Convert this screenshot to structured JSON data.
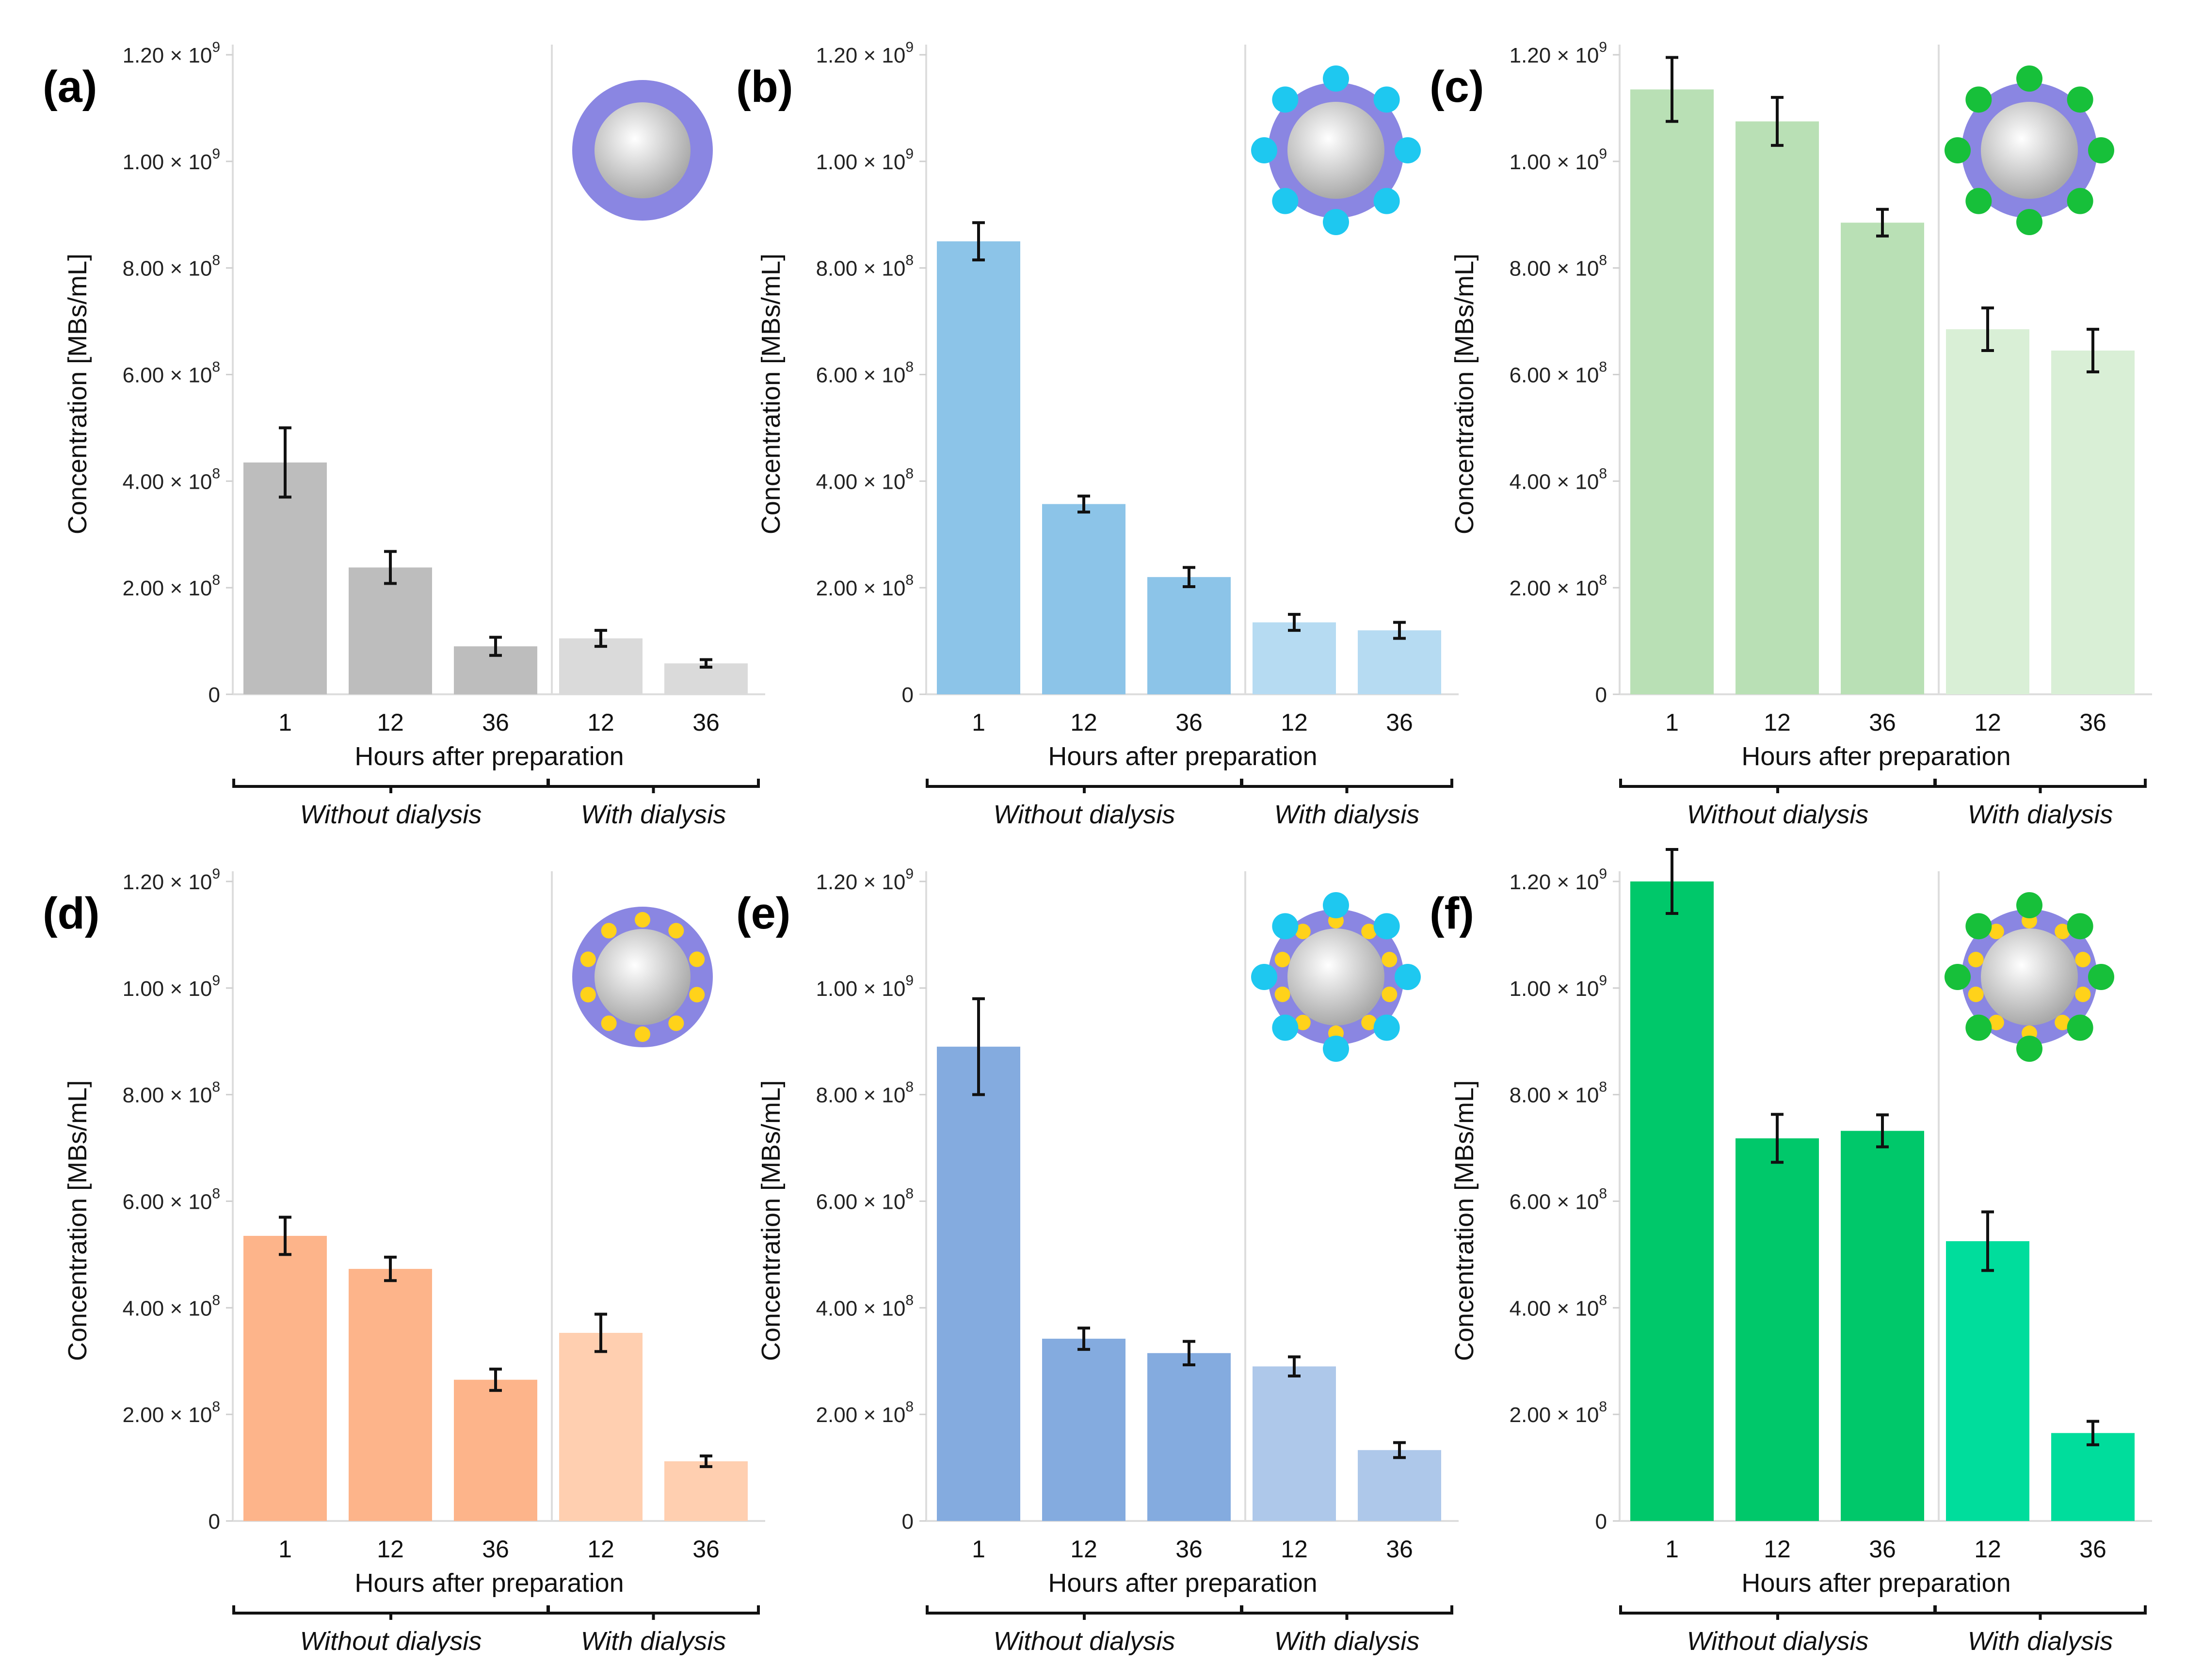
{
  "chart_data": [
    {
      "type": "bar",
      "panel_label": "(a)",
      "ylabel": "Concentration [MBs/mL]",
      "xlabel": "Hours after preparation",
      "categories": [
        "1",
        "12",
        "36",
        "12",
        "36"
      ],
      "groups": [
        {
          "label": "Without dialysis",
          "indices": [
            0,
            1,
            2
          ]
        },
        {
          "label": "With dialysis",
          "indices": [
            3,
            4
          ]
        }
      ],
      "values": [
        435000000.0,
        238000000.0,
        90000000.0,
        105000000.0,
        58000000.0
      ],
      "errors": [
        65000000.0,
        30000000.0,
        17000000.0,
        15000000.0,
        7000000.0
      ],
      "ylim": [
        0,
        1200000000.0
      ],
      "yticks": [
        {
          "value": 0,
          "label": "0",
          "sup": ""
        },
        {
          "value": 200000000.0,
          "label": "2.00 × 10",
          "sup": "8"
        },
        {
          "value": 400000000.0,
          "label": "4.00 × 10",
          "sup": "8"
        },
        {
          "value": 600000000.0,
          "label": "6.00 × 10",
          "sup": "8"
        },
        {
          "value": 800000000.0,
          "label": "8.00 × 10",
          "sup": "8"
        },
        {
          "value": 1000000000.0,
          "label": "1.00 × 10",
          "sup": "9"
        },
        {
          "value": 1200000000.0,
          "label": "1.20 × 10",
          "sup": "9"
        }
      ],
      "colors": [
        "#bdbdbd",
        "#bdbdbd",
        "#bdbdbd",
        "#dadada",
        "#dadada"
      ],
      "icon": {
        "name": "plain-microbubble-icon",
        "outer_dots": "",
        "inner_dots": ""
      }
    },
    {
      "type": "bar",
      "panel_label": "(b)",
      "ylabel": "Concentration [MBs/mL]",
      "xlabel": "Hours after preparation",
      "categories": [
        "1",
        "12",
        "36",
        "12",
        "36"
      ],
      "groups": [
        {
          "label": "Without dialysis",
          "indices": [
            0,
            1,
            2
          ]
        },
        {
          "label": "With dialysis",
          "indices": [
            3,
            4
          ]
        }
      ],
      "values": [
        850000000.0,
        357000000.0,
        220000000.0,
        135000000.0,
        120000000.0
      ],
      "errors": [
        35000000.0,
        15000000.0,
        18000000.0,
        15000000.0,
        15000000.0
      ],
      "ylim": [
        0,
        1200000000.0
      ],
      "yticks": [
        {
          "value": 0,
          "label": "0",
          "sup": ""
        },
        {
          "value": 200000000.0,
          "label": "2.00 × 10",
          "sup": "8"
        },
        {
          "value": 400000000.0,
          "label": "4.00 × 10",
          "sup": "8"
        },
        {
          "value": 600000000.0,
          "label": "6.00 × 10",
          "sup": "8"
        },
        {
          "value": 800000000.0,
          "label": "8.00 × 10",
          "sup": "8"
        },
        {
          "value": 1000000000.0,
          "label": "1.00 × 10",
          "sup": "9"
        },
        {
          "value": 1200000000.0,
          "label": "1.20 × 10",
          "sup": "9"
        }
      ],
      "colors": [
        "#8cc4e8",
        "#8cc4e8",
        "#8cc4e8",
        "#b6dbf2",
        "#b6dbf2"
      ],
      "icon": {
        "name": "cyan-ligand-microbubble-icon",
        "outer_dots": "#1ec8f0",
        "inner_dots": ""
      }
    },
    {
      "type": "bar",
      "panel_label": "(c)",
      "ylabel": "Concentration [MBs/mL]",
      "xlabel": "Hours after preparation",
      "categories": [
        "1",
        "12",
        "36",
        "12",
        "36"
      ],
      "groups": [
        {
          "label": "Without dialysis",
          "indices": [
            0,
            1,
            2
          ]
        },
        {
          "label": "With dialysis",
          "indices": [
            3,
            4
          ]
        }
      ],
      "values": [
        1135000000.0,
        1075000000.0,
        885000000.0,
        685000000.0,
        645000000.0
      ],
      "errors": [
        60000000.0,
        45000000.0,
        25000000.0,
        40000000.0,
        40000000.0
      ],
      "ylim": [
        0,
        1200000000.0
      ],
      "yticks": [
        {
          "value": 0,
          "label": "0",
          "sup": ""
        },
        {
          "value": 200000000.0,
          "label": "2.00 × 10",
          "sup": "8"
        },
        {
          "value": 400000000.0,
          "label": "4.00 × 10",
          "sup": "8"
        },
        {
          "value": 600000000.0,
          "label": "6.00 × 10",
          "sup": "8"
        },
        {
          "value": 800000000.0,
          "label": "8.00 × 10",
          "sup": "8"
        },
        {
          "value": 1000000000.0,
          "label": "1.00 × 10",
          "sup": "9"
        },
        {
          "value": 1200000000.0,
          "label": "1.20 × 10",
          "sup": "9"
        }
      ],
      "colors": [
        "#b9e0b5",
        "#b9e0b5",
        "#b9e0b5",
        "#d9efd6",
        "#d9efd6"
      ],
      "icon": {
        "name": "green-ligand-microbubble-icon",
        "outer_dots": "#17c03a",
        "inner_dots": ""
      }
    },
    {
      "type": "bar",
      "panel_label": "(d)",
      "ylabel": "Concentration [MBs/mL]",
      "xlabel": "Hours after preparation",
      "categories": [
        "1",
        "12",
        "36",
        "12",
        "36"
      ],
      "groups": [
        {
          "label": "Without dialysis",
          "indices": [
            0,
            1,
            2
          ]
        },
        {
          "label": "With dialysis",
          "indices": [
            3,
            4
          ]
        }
      ],
      "values": [
        535000000.0,
        473000000.0,
        265000000.0,
        353000000.0,
        112000000.0
      ],
      "errors": [
        35000000.0,
        22000000.0,
        20000000.0,
        35000000.0,
        10000000.0
      ],
      "ylim": [
        0,
        1200000000.0
      ],
      "yticks": [
        {
          "value": 0,
          "label": "0",
          "sup": ""
        },
        {
          "value": 200000000.0,
          "label": "2.00 × 10",
          "sup": "8"
        },
        {
          "value": 400000000.0,
          "label": "4.00 × 10",
          "sup": "8"
        },
        {
          "value": 600000000.0,
          "label": "6.00 × 10",
          "sup": "8"
        },
        {
          "value": 800000000.0,
          "label": "8.00 × 10",
          "sup": "8"
        },
        {
          "value": 1000000000.0,
          "label": "1.00 × 10",
          "sup": "9"
        },
        {
          "value": 1200000000.0,
          "label": "1.20 × 10",
          "sup": "9"
        }
      ],
      "colors": [
        "#fdb48a",
        "#fdb48a",
        "#fdb48a",
        "#ffcfb0",
        "#ffcfb0"
      ],
      "icon": {
        "name": "yellow-ligand-microbubble-icon",
        "outer_dots": "",
        "inner_dots": "#ffd21a"
      }
    },
    {
      "type": "bar",
      "panel_label": "(e)",
      "ylabel": "Concentration [MBs/mL]",
      "xlabel": "Hours after preparation",
      "categories": [
        "1",
        "12",
        "36",
        "12",
        "36"
      ],
      "groups": [
        {
          "label": "Without dialysis",
          "indices": [
            0,
            1,
            2
          ]
        },
        {
          "label": "With dialysis",
          "indices": [
            3,
            4
          ]
        }
      ],
      "values": [
        890000000.0,
        342000000.0,
        315000000.0,
        290000000.0,
        133000000.0
      ],
      "errors": [
        90000000.0,
        20000000.0,
        22000000.0,
        18000000.0,
        14000000.0
      ],
      "ylim": [
        0,
        1200000000.0
      ],
      "yticks": [
        {
          "value": 0,
          "label": "0",
          "sup": ""
        },
        {
          "value": 200000000.0,
          "label": "2.00 × 10",
          "sup": "8"
        },
        {
          "value": 400000000.0,
          "label": "4.00 × 10",
          "sup": "8"
        },
        {
          "value": 600000000.0,
          "label": "6.00 × 10",
          "sup": "8"
        },
        {
          "value": 800000000.0,
          "label": "8.00 × 10",
          "sup": "8"
        },
        {
          "value": 1000000000.0,
          "label": "1.00 × 10",
          "sup": "9"
        },
        {
          "value": 1200000000.0,
          "label": "1.20 × 10",
          "sup": "9"
        }
      ],
      "colors": [
        "#84abdf",
        "#84abdf",
        "#84abdf",
        "#aec8ea",
        "#aec8ea"
      ],
      "icon": {
        "name": "cyan-yellow-ligand-microbubble-icon",
        "outer_dots": "#1ec8f0",
        "inner_dots": "#ffd21a"
      }
    },
    {
      "type": "bar",
      "panel_label": "(f)",
      "ylabel": "Concentration [MBs/mL]",
      "xlabel": "Hours after preparation",
      "categories": [
        "1",
        "12",
        "36",
        "12",
        "36"
      ],
      "groups": [
        {
          "label": "Without dialysis",
          "indices": [
            0,
            1,
            2
          ]
        },
        {
          "label": "With dialysis",
          "indices": [
            3,
            4
          ]
        }
      ],
      "values": [
        1200000000.0,
        718000000.0,
        732000000.0,
        525000000.0,
        165000000.0
      ],
      "errors": [
        60000000.0,
        45000000.0,
        30000000.0,
        55000000.0,
        22000000.0
      ],
      "ylim": [
        0,
        1200000000.0
      ],
      "yticks": [
        {
          "value": 0,
          "label": "0",
          "sup": ""
        },
        {
          "value": 200000000.0,
          "label": "2.00 × 10",
          "sup": "8"
        },
        {
          "value": 400000000.0,
          "label": "4.00 × 10",
          "sup": "8"
        },
        {
          "value": 600000000.0,
          "label": "6.00 × 10",
          "sup": "8"
        },
        {
          "value": 800000000.0,
          "label": "8.00 × 10",
          "sup": "8"
        },
        {
          "value": 1000000000.0,
          "label": "1.00 × 10",
          "sup": "9"
        },
        {
          "value": 1200000000.0,
          "label": "1.20 × 10",
          "sup": "9"
        }
      ],
      "colors": [
        "#00c86a",
        "#00c86a",
        "#00c86a",
        "#00dd9c",
        "#00dd9c"
      ],
      "icon": {
        "name": "green-yellow-ligand-microbubble-icon",
        "outer_dots": "#17c03a",
        "inner_dots": "#ffd21a"
      }
    }
  ],
  "style": {
    "shell_color": "#8a86e2",
    "core_light": "#ffffff",
    "core_dark": "#a9a9a9",
    "axis_color": "#dddddd",
    "error_color": "#111111"
  }
}
